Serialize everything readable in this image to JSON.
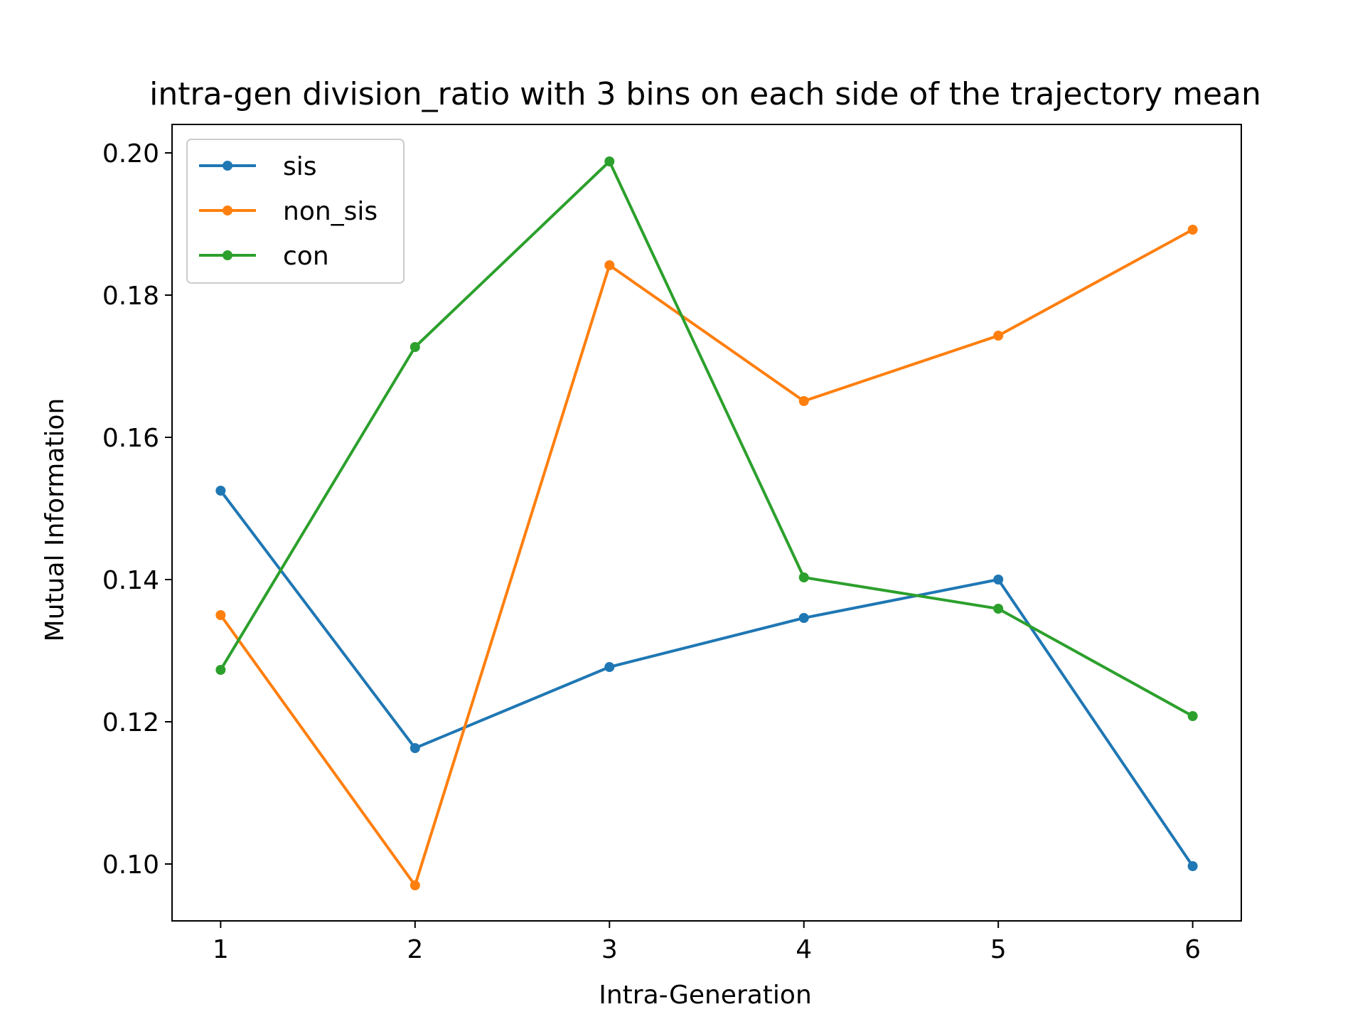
{
  "chart_data": {
    "type": "line",
    "title": "intra-gen division_ratio with 3 bins on each side of the trajectory mean",
    "xlabel": "Intra-Generation",
    "ylabel": "Mutual Information",
    "x": [
      1,
      2,
      3,
      4,
      5,
      6
    ],
    "xticks": [
      "1",
      "2",
      "3",
      "4",
      "5",
      "6"
    ],
    "yticks": [
      "0.10",
      "0.12",
      "0.14",
      "0.16",
      "0.18",
      "0.20"
    ],
    "xlim": [
      0.75,
      6.25
    ],
    "ylim": [
      0.092,
      0.204
    ],
    "grid": false,
    "legend_position": "top-left",
    "series": [
      {
        "name": "sis",
        "color": "#1f77b4",
        "values": [
          0.1525,
          0.1163,
          0.1277,
          0.1346,
          0.14,
          0.0997
        ]
      },
      {
        "name": "non_sis",
        "color": "#ff7f0e",
        "values": [
          0.135,
          0.097,
          0.1842,
          0.1651,
          0.1743,
          0.1892
        ]
      },
      {
        "name": "con",
        "color": "#2ca02c",
        "values": [
          0.1273,
          0.1727,
          0.1988,
          0.1403,
          0.1359,
          0.1208
        ]
      }
    ]
  }
}
